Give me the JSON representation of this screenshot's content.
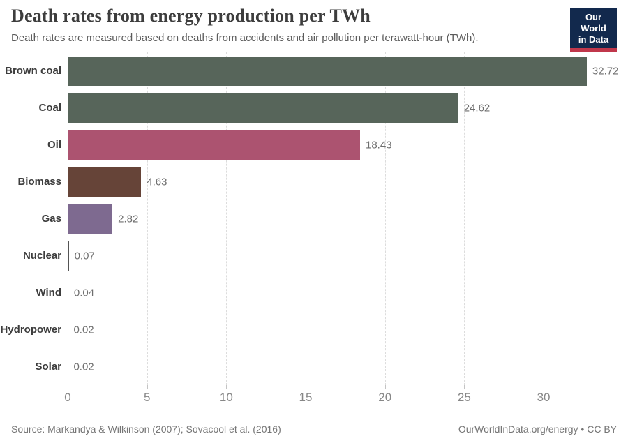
{
  "header": {
    "title": "Death rates from energy production per TWh",
    "subtitle": "Death rates are measured based on deaths from accidents and air pollution per terawatt-hour (TWh).",
    "logo": {
      "line1": "Our World",
      "line2": "in Data",
      "bg_color": "#12294d",
      "accent_color": "#c0374b"
    }
  },
  "chart_data": {
    "type": "bar",
    "orientation": "horizontal",
    "title": "Death rates from energy production per TWh",
    "categories": [
      "Brown coal",
      "Coal",
      "Oil",
      "Biomass",
      "Gas",
      "Nuclear",
      "Wind",
      "Hydropower",
      "Solar"
    ],
    "values": [
      32.72,
      24.62,
      18.43,
      4.63,
      2.82,
      0.07,
      0.04,
      0.02,
      0.02
    ],
    "value_labels": [
      "32.72",
      "24.62",
      "18.43",
      "4.63",
      "2.82",
      "0.07",
      "0.04",
      "0.02",
      "0.02"
    ],
    "bar_colors": [
      "#57655a",
      "#57655a",
      "#ac5370",
      "#664438",
      "#7e6a90",
      "#545454",
      "#545454",
      "#545454",
      "#545454"
    ],
    "xticks": [
      "0",
      "5",
      "10",
      "15",
      "20",
      "25",
      "30"
    ],
    "xtick_values": [
      0,
      5,
      10,
      15,
      20,
      25,
      30
    ],
    "xlim": [
      0,
      33.56
    ],
    "xlabel": "",
    "ylabel": "",
    "grid": "vertical-dashed",
    "legend": "none"
  },
  "footer": {
    "source": "Source: Markandya & Wilkinson (2007); Sovacool et al. (2016)",
    "link": "OurWorldInData.org/energy • CC BY"
  }
}
